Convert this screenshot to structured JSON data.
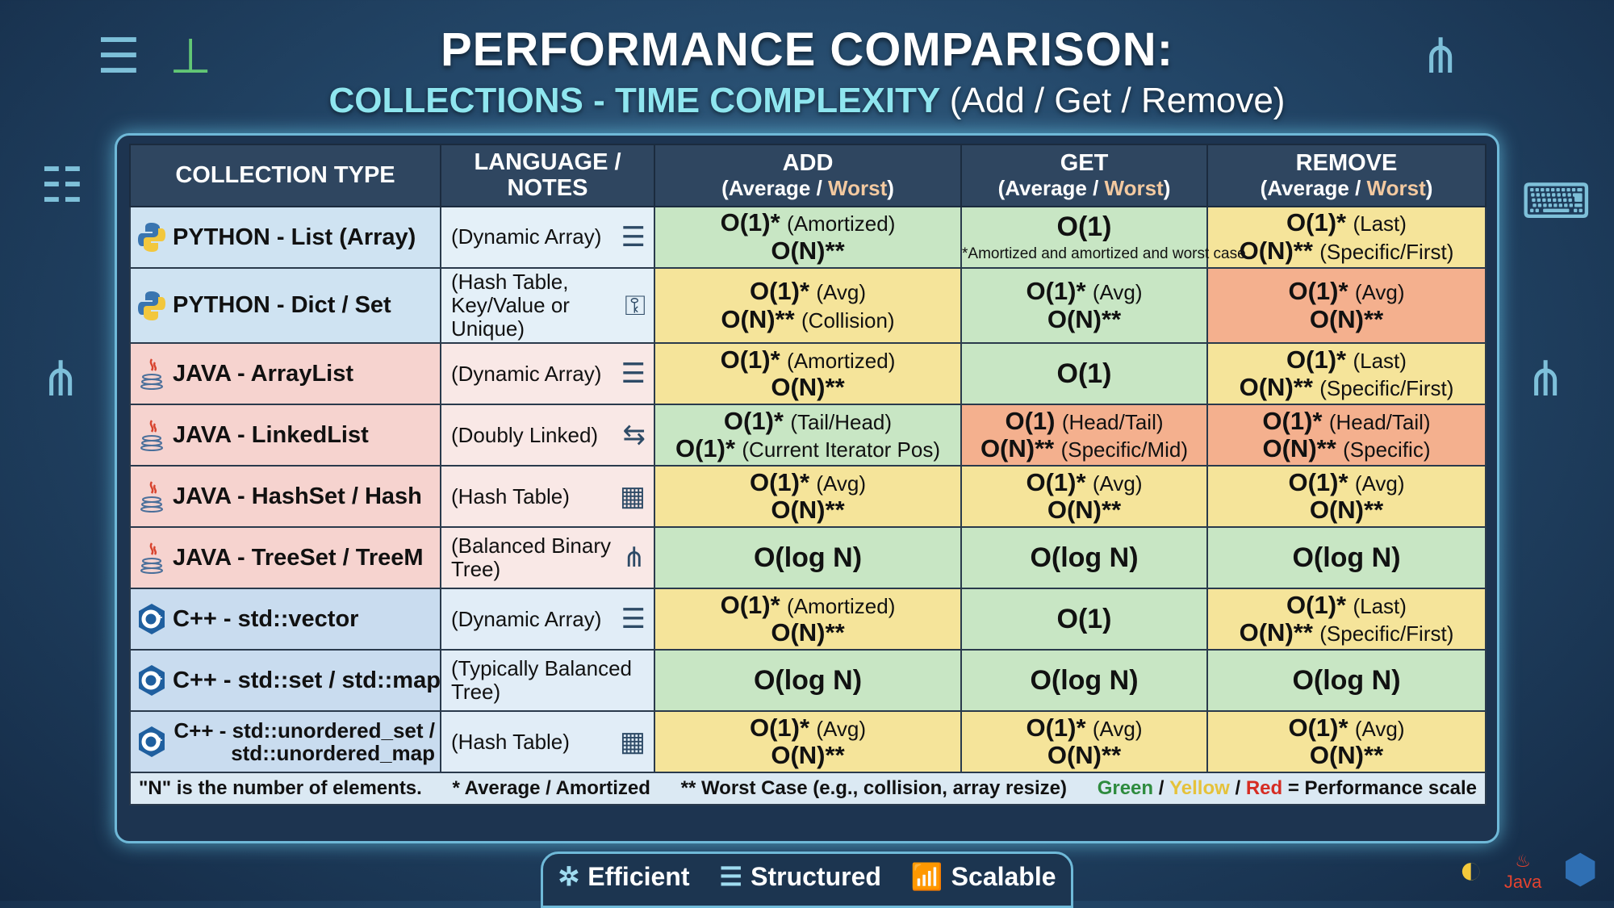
{
  "header": {
    "title": "PERFORMANCE COMPARISON:",
    "subtitle": "COLLECTIONS - TIME COMPLEXITY",
    "subtitle_ops": "(Add / Get / Remove)"
  },
  "colors": {
    "green": "#c8e6c4",
    "yellow": "#f5e49a",
    "red": "#f4b08e",
    "python": "#cfe3f2",
    "java": "#f6d3cf",
    "cpp": "#c9dcef"
  },
  "columns": {
    "collection": "COLLECTION TYPE",
    "notes": "LANGUAGE / NOTES",
    "add": "ADD",
    "get": "GET",
    "remove": "REMOVE",
    "average": "(Average / ",
    "worst": "Worst",
    ")": ")"
  },
  "rows": [
    {
      "lang": "python",
      "icon": "python-logo-icon",
      "name": "PYTHON - List (Array)",
      "notes": "(Dynamic Array)",
      "notes_icon": "array-stack-icon",
      "add": {
        "color": "green",
        "lines": [
          {
            "b": "O(1)*",
            "n": "(Amortized)"
          },
          {
            "b": "O(N)**",
            "n": ""
          }
        ]
      },
      "get": {
        "color": "green",
        "lines": [
          {
            "b": "O(1)",
            "n": ""
          }
        ],
        "footnote": "*Amortized and amortized and worst case"
      },
      "remove": {
        "color": "yellow",
        "lines": [
          {
            "b": "O(1)*",
            "n": "(Last)"
          },
          {
            "b": "O(N)**",
            "n": "(Specific/First)"
          }
        ]
      }
    },
    {
      "lang": "python",
      "icon": "python-logo-icon",
      "name": "PYTHON - Dict / Set",
      "notes": "(Hash Table, Key/Value or Unique)",
      "notes_icon": "hash-key-icon",
      "add": {
        "color": "yellow",
        "lines": [
          {
            "b": "O(1)*",
            "n": "(Avg)"
          },
          {
            "b": "O(N)**",
            "n": "(Collision)"
          }
        ]
      },
      "get": {
        "color": "green",
        "lines": [
          {
            "b": "O(1)*",
            "n": "(Avg)"
          },
          {
            "b": "O(N)**",
            "n": ""
          }
        ]
      },
      "remove": {
        "color": "red",
        "lines": [
          {
            "b": "O(1)*",
            "n": "(Avg)"
          },
          {
            "b": "O(N)**",
            "n": ""
          }
        ]
      }
    },
    {
      "lang": "java",
      "icon": "java-logo-icon",
      "name": "JAVA - ArrayList",
      "notes": "(Dynamic Array)",
      "notes_icon": "array-stack-icon",
      "add": {
        "color": "yellow",
        "lines": [
          {
            "b": "O(1)*",
            "n": "(Amortized)"
          },
          {
            "b": "O(N)**",
            "n": ""
          }
        ]
      },
      "get": {
        "color": "green",
        "lines": [
          {
            "b": "O(1)",
            "n": ""
          }
        ]
      },
      "remove": {
        "color": "yellow",
        "lines": [
          {
            "b": "O(1)*",
            "n": "(Last)"
          },
          {
            "b": "O(N)**",
            "n": "(Specific/First)"
          }
        ]
      }
    },
    {
      "lang": "java",
      "icon": "java-logo-icon",
      "name": "JAVA - LinkedList",
      "notes": "(Doubly Linked)",
      "notes_icon": "double-arrow-icon",
      "add": {
        "color": "green",
        "lines": [
          {
            "b": "O(1)*",
            "n": "(Tail/Head)"
          },
          {
            "b": "O(1)*",
            "n": "(Current Iterator Pos)"
          }
        ]
      },
      "get": {
        "color": "red",
        "lines": [
          {
            "b": "O(1)",
            "n": "(Head/Tail)"
          },
          {
            "b": "O(N)**",
            "n": "(Specific/Mid)"
          }
        ]
      },
      "remove": {
        "color": "red",
        "lines": [
          {
            "b": "O(1)*",
            "n": "(Head/Tail)"
          },
          {
            "b": "O(N)**",
            "n": "(Specific)"
          }
        ]
      }
    },
    {
      "lang": "java",
      "icon": "java-logo-icon",
      "name": "JAVA - HashSet / Hash",
      "notes": "(Hash Table)",
      "notes_icon": "hash-table-icon",
      "add": {
        "color": "yellow",
        "lines": [
          {
            "b": "O(1)*",
            "n": "(Avg)"
          },
          {
            "b": "O(N)**",
            "n": ""
          }
        ]
      },
      "get": {
        "color": "yellow",
        "lines": [
          {
            "b": "O(1)*",
            "n": "(Avg)"
          },
          {
            "b": "O(N)**",
            "n": ""
          }
        ]
      },
      "remove": {
        "color": "yellow",
        "lines": [
          {
            "b": "O(1)*",
            "n": "(Avg)"
          },
          {
            "b": "O(N)**",
            "n": ""
          }
        ]
      }
    },
    {
      "lang": "java",
      "icon": "java-logo-icon",
      "name": "JAVA - TreeSet / TreeM",
      "notes": "(Balanced Binary Tree)",
      "notes_icon": "tree-icon",
      "add": {
        "color": "green",
        "lines": [
          {
            "b": "O(log N)",
            "n": ""
          }
        ]
      },
      "get": {
        "color": "green",
        "lines": [
          {
            "b": "O(log N)",
            "n": ""
          }
        ]
      },
      "remove": {
        "color": "green",
        "lines": [
          {
            "b": "O(log N)",
            "n": ""
          }
        ]
      }
    },
    {
      "lang": "cpp",
      "icon": "cpp-logo-icon",
      "name": "C++ - std::vector",
      "notes": "(Dynamic Array)",
      "notes_icon": "array-stack-icon",
      "add": {
        "color": "yellow",
        "lines": [
          {
            "b": "O(1)*",
            "n": "(Amortized)"
          },
          {
            "b": "O(N)**",
            "n": ""
          }
        ]
      },
      "get": {
        "color": "green",
        "lines": [
          {
            "b": "O(1)",
            "n": ""
          }
        ]
      },
      "remove": {
        "color": "yellow",
        "lines": [
          {
            "b": "O(1)*",
            "n": "(Last)"
          },
          {
            "b": "O(N)**",
            "n": "(Specific/First)"
          }
        ]
      }
    },
    {
      "lang": "cpp",
      "icon": "cpp-logo-icon",
      "name": "C++ - std::set / std::map",
      "notes": "(Typically Balanced Tree)",
      "notes_icon": "",
      "add": {
        "color": "green",
        "lines": [
          {
            "b": "O(log N)",
            "n": ""
          }
        ]
      },
      "get": {
        "color": "green",
        "lines": [
          {
            "b": "O(log N)",
            "n": ""
          }
        ]
      },
      "remove": {
        "color": "green",
        "lines": [
          {
            "b": "O(log N)",
            "n": ""
          }
        ]
      }
    },
    {
      "lang": "cpp",
      "icon": "cpp-logo-icon",
      "name": "C++ - std::unordered_set / std::unordered_map",
      "notes": "(Hash Table)",
      "notes_icon": "hash-table-icon",
      "add": {
        "color": "yellow",
        "lines": [
          {
            "b": "O(1)*",
            "n": "(Avg)"
          },
          {
            "b": "O(N)**",
            "n": ""
          }
        ]
      },
      "get": {
        "color": "yellow",
        "lines": [
          {
            "b": "O(1)*",
            "n": "(Avg)"
          },
          {
            "b": "O(N)**",
            "n": ""
          }
        ]
      },
      "remove": {
        "color": "yellow",
        "lines": [
          {
            "b": "O(1)*",
            "n": "(Avg)"
          },
          {
            "b": "O(N)**",
            "n": ""
          }
        ]
      }
    }
  ],
  "legend": {
    "n_def": "\"N\" is the number of elements.",
    "avg": "* Average / Amortized",
    "worst": "** Worst Case (e.g., collision, array resize)",
    "green": "Green",
    "yellow": "Yellow",
    "red": "Red",
    "sep": "/",
    "scale": "= Performance scale"
  },
  "badges": [
    {
      "label": "Efficient",
      "icon": "network-icon"
    },
    {
      "label": "Structured",
      "icon": "list-icon"
    },
    {
      "label": "Scalable",
      "icon": "growth-chart-icon"
    }
  ],
  "logos": {
    "java": "Java"
  }
}
